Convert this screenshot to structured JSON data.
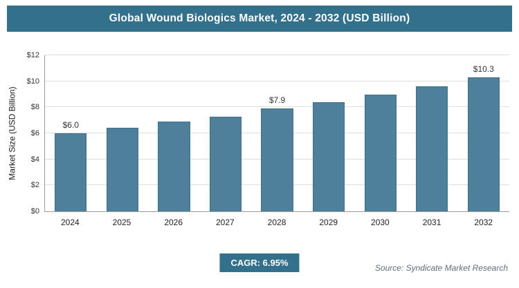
{
  "header": {
    "title": "Global Wound Biologics Market, 2024 - 2032 (USD Billion)"
  },
  "chart_data": {
    "type": "bar",
    "title": "Global Wound Biologics Market, 2024 - 2032 (USD Billion)",
    "categories": [
      "2024",
      "2025",
      "2026",
      "2027",
      "2028",
      "2029",
      "2030",
      "2031",
      "2032"
    ],
    "values": [
      6.0,
      6.4,
      6.9,
      7.3,
      7.9,
      8.4,
      9.0,
      9.6,
      10.3
    ],
    "bar_labels": [
      "$6.0",
      "",
      "",
      "",
      "$7.9",
      "",
      "",
      "",
      "$10.3"
    ],
    "xlabel": "",
    "ylabel": "Market Size (USD Billion)",
    "ylim": [
      0,
      12
    ],
    "ytick_step": 2,
    "yticks": [
      "$0",
      "$2",
      "$4",
      "$6",
      "$8",
      "$10",
      "$12"
    ],
    "grid": true,
    "legend": "none",
    "bar_color": "#4f809b"
  },
  "footer": {
    "cagr_label": "CAGR: 6.95%",
    "source": "Source: Syndicate Market Research"
  },
  "colors": {
    "header_bg": "#33708c",
    "badge_bg": "#33708c",
    "bar": "#4f809b",
    "bar_border": "#3f6e87"
  }
}
